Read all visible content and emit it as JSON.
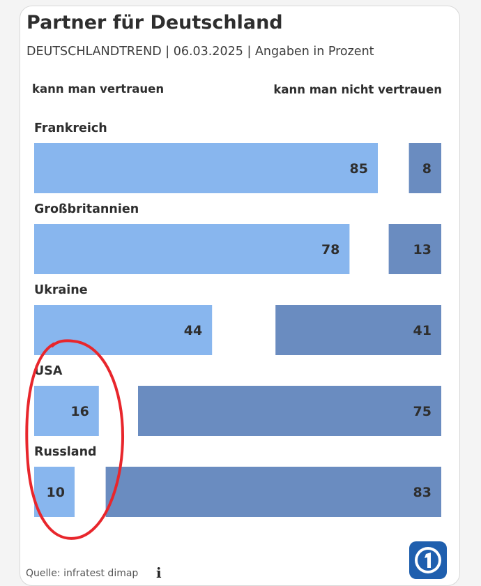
{
  "title": "Partner für Deutschland",
  "subtitle": "DEUTSCHLANDTREND | 06.03.2025 | Angaben in Prozent",
  "header_left": "kann man vertrauen",
  "header_right": "kann man nicht vertrauen",
  "source": "Quelle: infratest dimap",
  "colors": {
    "trust": "#88b6ee",
    "distrust": "#6a8cc0",
    "annotation": "#e8262c",
    "logo": "#1f5fae"
  },
  "chart_data": {
    "type": "bar",
    "orientation": "horizontal",
    "categories": [
      "Frankreich",
      "Großbritannien",
      "Ukraine",
      "USA",
      "Russland"
    ],
    "series": [
      {
        "name": "kann man vertrauen",
        "values": [
          85,
          78,
          44,
          16,
          10
        ]
      },
      {
        "name": "kann man nicht vertrauen",
        "values": [
          8,
          13,
          41,
          75,
          83
        ]
      }
    ],
    "xlim": [
      0,
      100
    ]
  }
}
